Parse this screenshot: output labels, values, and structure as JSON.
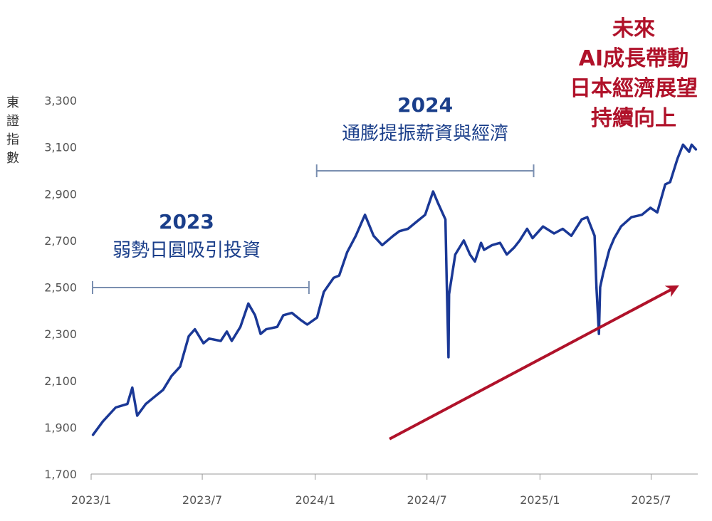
{
  "chart_data": {
    "type": "line",
    "ylabel": "東證指數",
    "ylim": [
      1700,
      3300
    ],
    "yticks": [
      1700,
      1900,
      2100,
      2300,
      2500,
      2700,
      2900,
      3100,
      3300
    ],
    "ytick_labels": [
      "1,700",
      "1,900",
      "2,100",
      "2,300",
      "2,500",
      "2,700",
      "2,900",
      "3,100",
      "3,300"
    ],
    "xlim": [
      "2023-01-01",
      "2025-09-15"
    ],
    "xticks": [
      "2023-01-01",
      "2023-07-01",
      "2024-01-01",
      "2024-07-01",
      "2025-01-01",
      "2025-07-01"
    ],
    "xtick_labels": [
      "2023/1",
      "2023/7",
      "2024/1",
      "2024/7",
      "2025/1",
      "2025/7"
    ],
    "grid": false,
    "series": [
      {
        "color": "#1a3896",
        "x": [
          "2023-01-04",
          "2023-01-20",
          "2023-02-10",
          "2023-03-01",
          "2023-03-09",
          "2023-03-17",
          "2023-03-31",
          "2023-04-14",
          "2023-04-28",
          "2023-05-12",
          "2023-05-26",
          "2023-06-09",
          "2023-06-19",
          "2023-07-03",
          "2023-07-12",
          "2023-07-31",
          "2023-08-10",
          "2023-08-18",
          "2023-09-01",
          "2023-09-14",
          "2023-09-25",
          "2023-10-04",
          "2023-10-13",
          "2023-10-31",
          "2023-11-10",
          "2023-11-24",
          "2023-12-08",
          "2023-12-19",
          "2024-01-04",
          "2024-01-15",
          "2024-01-31",
          "2024-02-09",
          "2024-02-22",
          "2024-03-07",
          "2024-03-22",
          "2024-04-05",
          "2024-04-19",
          "2024-05-07",
          "2024-05-17",
          "2024-05-31",
          "2024-06-14",
          "2024-06-28",
          "2024-07-11",
          "2024-07-19",
          "2024-07-31",
          "2024-08-02",
          "2024-08-05",
          "2024-08-06",
          "2024-08-09",
          "2024-08-16",
          "2024-08-30",
          "2024-09-09",
          "2024-09-17",
          "2024-09-27",
          "2024-10-02",
          "2024-10-15",
          "2024-10-28",
          "2024-11-08",
          "2024-11-20",
          "2024-11-29",
          "2024-12-11",
          "2024-12-20",
          "2025-01-06",
          "2025-01-24",
          "2025-02-07",
          "2025-02-21",
          "2025-03-10",
          "2025-03-19",
          "2025-03-31",
          "2025-04-03",
          "2025-04-07",
          "2025-04-09",
          "2025-04-14",
          "2025-04-24",
          "2025-05-02",
          "2025-05-13",
          "2025-05-30",
          "2025-06-16",
          "2025-06-30",
          "2025-07-11",
          "2025-07-24",
          "2025-08-01",
          "2025-08-13",
          "2025-08-22",
          "2025-09-01",
          "2025-09-05",
          "2025-09-12"
        ],
        "values": [
          1868,
          1925,
          1985,
          2000,
          2070,
          1950,
          2000,
          2030,
          2060,
          2120,
          2160,
          2290,
          2320,
          2260,
          2280,
          2270,
          2310,
          2270,
          2330,
          2430,
          2380,
          2300,
          2320,
          2330,
          2380,
          2390,
          2360,
          2340,
          2370,
          2480,
          2540,
          2550,
          2650,
          2720,
          2810,
          2720,
          2680,
          2720,
          2740,
          2750,
          2780,
          2810,
          2910,
          2860,
          2790,
          2540,
          2200,
          2470,
          2520,
          2640,
          2700,
          2640,
          2610,
          2690,
          2660,
          2680,
          2690,
          2640,
          2670,
          2700,
          2750,
          2710,
          2760,
          2730,
          2750,
          2720,
          2790,
          2800,
          2720,
          2500,
          2300,
          2500,
          2560,
          2660,
          2710,
          2760,
          2800,
          2810,
          2840,
          2820,
          2940,
          2950,
          3050,
          3110,
          3080,
          3110,
          3090
        ]
      }
    ],
    "annotations": [
      {
        "span": [
          "2023-01-01",
          "2023-12-31"
        ],
        "year": "2023",
        "text": "弱勢日圓吸引投資"
      },
      {
        "span": [
          "2024-01-01",
          "2024-12-31"
        ],
        "year": "2024",
        "text": "通膨提振薪資與經濟"
      }
    ],
    "highlight": {
      "lines": [
        "未來",
        "AI成長帶動",
        "日本經濟展望",
        "持續向上"
      ],
      "arrow_from": {
        "x": "2024-05-01",
        "y": 1850
      },
      "arrow_to": {
        "x": "2025-08-10",
        "y": 2500
      }
    }
  }
}
